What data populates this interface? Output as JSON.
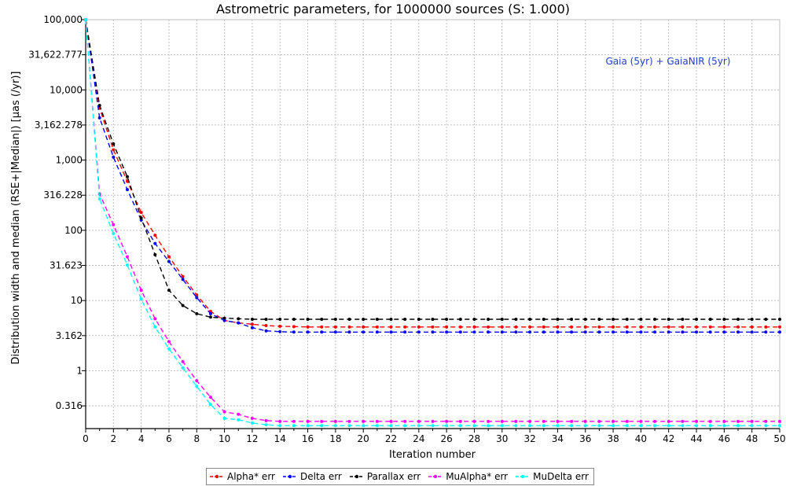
{
  "chart_data": {
    "type": "line",
    "title": "Astrometric parameters, for 1000000 sources (S: 1.000)",
    "xlabel": "Iteration number",
    "ylabel": "Distribution width and median (RSE+|Median|) [µas (/yr)]",
    "annotation": "Gaia (5yr) + GaiaNIR (5yr)",
    "annotation_color": "#1f3fcf",
    "xlim": [
      0,
      50
    ],
    "ylim": [
      0.15,
      100000
    ],
    "yscale": "log",
    "grid": true,
    "legend_position": "bottom",
    "xticks": [
      "0",
      "2",
      "4",
      "6",
      "8",
      "10",
      "12",
      "14",
      "16",
      "18",
      "20",
      "22",
      "24",
      "26",
      "28",
      "30",
      "32",
      "34",
      "36",
      "38",
      "40",
      "42",
      "44",
      "46",
      "48",
      "50"
    ],
    "yticks": [
      {
        "value": 100000,
        "label": "100,000"
      },
      {
        "value": 31622.777,
        "label": "31,622.777"
      },
      {
        "value": 10000,
        "label": "10,000"
      },
      {
        "value": 3162.278,
        "label": "3,162.278"
      },
      {
        "value": 1000,
        "label": "1,000"
      },
      {
        "value": 316.228,
        "label": "316.228"
      },
      {
        "value": 100,
        "label": "100"
      },
      {
        "value": 31.623,
        "label": "31.623"
      },
      {
        "value": 10,
        "label": "10"
      },
      {
        "value": 3.162,
        "label": "3.162"
      },
      {
        "value": 1,
        "label": "1"
      },
      {
        "value": 0.316,
        "label": "0.316"
      }
    ],
    "series": [
      {
        "name": "Alpha* err",
        "color": "#ff0000",
        "values": [
          100000,
          5500,
          1400,
          500,
          180,
          85,
          42,
          22,
          12,
          7,
          5.2,
          4.8,
          4.6,
          4.4,
          4.3,
          4.25,
          4.2,
          4.2,
          4.2,
          4.2,
          4.2,
          4.2,
          4.2,
          4.2,
          4.2,
          4.2,
          4.2,
          4.2,
          4.2,
          4.2,
          4.2,
          4.2,
          4.2,
          4.2,
          4.2,
          4.2,
          4.2,
          4.2,
          4.2,
          4.2,
          4.2,
          4.2,
          4.2,
          4.2,
          4.2,
          4.2,
          4.2,
          4.2,
          4.2,
          4.2,
          4.2
        ]
      },
      {
        "name": "Delta err",
        "color": "#0000ff",
        "values": [
          100000,
          4000,
          1100,
          380,
          140,
          65,
          36,
          20,
          11,
          6.5,
          5.2,
          4.8,
          4.1,
          3.7,
          3.6,
          3.55,
          3.55,
          3.55,
          3.55,
          3.55,
          3.55,
          3.55,
          3.55,
          3.55,
          3.55,
          3.55,
          3.55,
          3.55,
          3.55,
          3.55,
          3.55,
          3.55,
          3.55,
          3.55,
          3.55,
          3.55,
          3.55,
          3.55,
          3.55,
          3.55,
          3.55,
          3.55,
          3.55,
          3.55,
          3.55,
          3.55,
          3.55,
          3.55,
          3.55,
          3.55,
          3.55
        ]
      },
      {
        "name": "Parallax err",
        "color": "#000000",
        "values": [
          100000,
          6000,
          1700,
          580,
          150,
          45,
          14,
          8.5,
          6.5,
          5.8,
          5.6,
          5.5,
          5.4,
          5.4,
          5.4,
          5.4,
          5.4,
          5.4,
          5.4,
          5.4,
          5.4,
          5.4,
          5.4,
          5.4,
          5.4,
          5.4,
          5.4,
          5.4,
          5.4,
          5.4,
          5.4,
          5.4,
          5.4,
          5.4,
          5.4,
          5.4,
          5.4,
          5.4,
          5.4,
          5.4,
          5.4,
          5.4,
          5.4,
          5.4,
          5.4,
          5.4,
          5.4,
          5.4,
          5.4,
          5.4,
          5.4
        ]
      },
      {
        "name": "MuAlpha* err",
        "color": "#ff00ff",
        "values": [
          100000,
          330,
          120,
          42,
          14,
          5.5,
          2.6,
          1.35,
          0.72,
          0.42,
          0.26,
          0.24,
          0.21,
          0.195,
          0.19,
          0.19,
          0.19,
          0.19,
          0.19,
          0.19,
          0.19,
          0.19,
          0.19,
          0.19,
          0.19,
          0.19,
          0.19,
          0.19,
          0.19,
          0.19,
          0.19,
          0.19,
          0.19,
          0.19,
          0.19,
          0.19,
          0.19,
          0.19,
          0.19,
          0.19,
          0.19,
          0.19,
          0.19,
          0.19,
          0.19,
          0.19,
          0.19,
          0.19,
          0.19,
          0.19,
          0.19
        ]
      },
      {
        "name": "MuDelta err",
        "color": "#00ffff",
        "values": [
          100000,
          280,
          90,
          32,
          10.5,
          4.2,
          2.05,
          1.1,
          0.6,
          0.33,
          0.21,
          0.2,
          0.18,
          0.17,
          0.165,
          0.165,
          0.165,
          0.165,
          0.165,
          0.165,
          0.165,
          0.165,
          0.165,
          0.165,
          0.165,
          0.165,
          0.165,
          0.165,
          0.165,
          0.165,
          0.165,
          0.165,
          0.165,
          0.165,
          0.165,
          0.165,
          0.165,
          0.165,
          0.165,
          0.165,
          0.165,
          0.165,
          0.165,
          0.165,
          0.165,
          0.165,
          0.165,
          0.165,
          0.165,
          0.165,
          0.165
        ]
      }
    ]
  }
}
